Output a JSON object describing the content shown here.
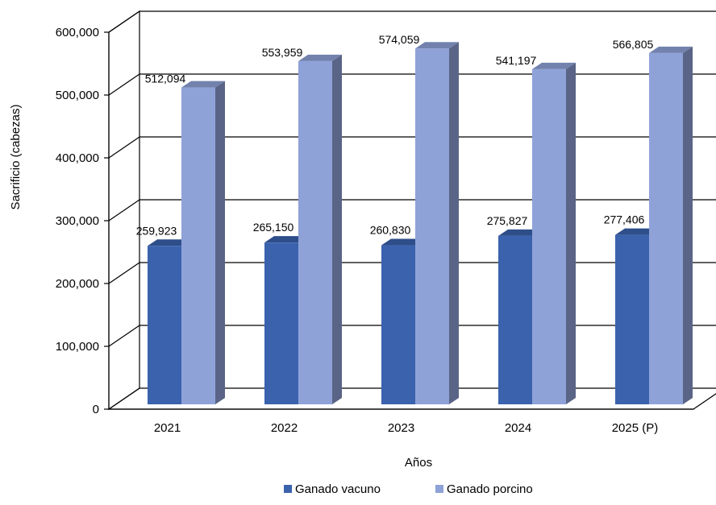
{
  "chart_data": {
    "type": "bar",
    "categories": [
      "2021",
      "2022",
      "2023",
      "2024",
      "2025 (P)"
    ],
    "series": [
      {
        "name": "Ganado vacuno",
        "values": [
          259923,
          265150,
          260830,
          275827,
          277406
        ],
        "labels": [
          "259,923",
          "265,150",
          "260,830",
          "275,827",
          "277,406"
        ],
        "color": "#3a62ad"
      },
      {
        "name": "Ganado porcino",
        "values": [
          512094,
          553959,
          574059,
          541197,
          566805
        ],
        "labels": [
          "512,094",
          "553,959",
          "574,059",
          "541,197",
          "566,805"
        ],
        "color": "#8fa2d8"
      }
    ],
    "xlabel": "Años",
    "ylabel": "Sacrificio (cabezas)",
    "ylim": [
      0,
      600000
    ],
    "yticks": [
      0,
      100000,
      200000,
      300000,
      400000,
      500000,
      600000
    ],
    "ytick_labels": [
      "0",
      "100,000",
      "200,000",
      "300,000",
      "400,000",
      "500,000",
      "600,000"
    ],
    "grid": true,
    "legend_position": "bottom",
    "style": "3d-clustered-column"
  }
}
